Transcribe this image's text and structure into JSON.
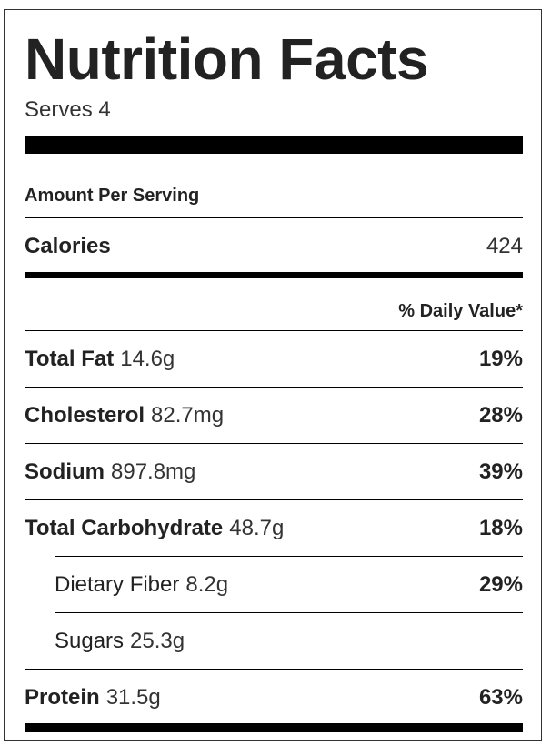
{
  "title": "Nutrition Facts",
  "serves": "Serves 4",
  "amount_per_serving": "Amount Per Serving",
  "calories": {
    "label": "Calories",
    "value": "424"
  },
  "daily_value_header": "% Daily Value*",
  "nutrients": [
    {
      "name": "Total Fat",
      "amount": "14.6g",
      "dv": "19%"
    },
    {
      "name": "Cholesterol",
      "amount": "82.7mg",
      "dv": "28%"
    },
    {
      "name": "Sodium",
      "amount": "897.8mg",
      "dv": "39%"
    },
    {
      "name": "Total Carbohydrate",
      "amount": "48.7g",
      "dv": "18%"
    },
    {
      "name": "Dietary Fiber",
      "amount": "8.2g",
      "dv": "29%"
    },
    {
      "name": "Sugars",
      "amount": "25.3g",
      "dv": ""
    },
    {
      "name": "Protein",
      "amount": "31.5g",
      "dv": "63%"
    }
  ]
}
